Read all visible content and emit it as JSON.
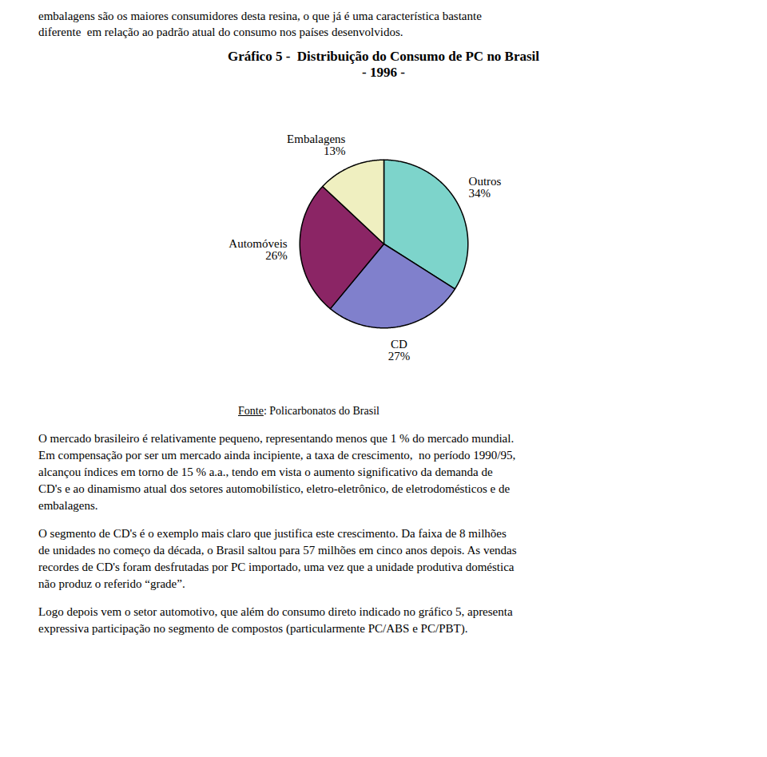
{
  "chart_data": {
    "type": "pie",
    "title": "Gráfico 5 -  Distribuição do Consumo de PC no Brasil",
    "subtitle": "- 1996 -",
    "categories": [
      "Outros",
      "CD",
      "Automóveis",
      "Embalagens"
    ],
    "values": [
      34,
      27,
      26,
      13
    ],
    "value_labels": [
      "34%",
      "27%",
      "26%",
      "13%"
    ],
    "data_labels": true,
    "colors": [
      "#7DD4CB",
      "#8080CC",
      "#8B2565",
      "#EFEFC0"
    ],
    "annotations": [
      "embalagens são os maiores consumidores desta resina, o que já é uma característica bastante",
      "diferente  em relação ao padrão atual do consumo nos países desenvolvidos.",
      "Fonte: Policarbonatos do Brasil",
      "O mercado brasileiro é relativamente pequeno, representando menos que 1 % do mercado mundial.\nEm compensação por ser um mercado ainda incipiente, a taxa de crescimento,  no período 1990/95,\nalcançou índices em torno de 15 % a.a., tendo em vista o aumento significativo da demanda de\nCD's e ao dinamismo atual dos setores automobilístico, eletro-eletrônico, de eletrodomésticos e de\nembalagens.",
      "O segmento de CD's é o exemplo mais claro que justifica este crescimento. Da faixa de 8 milhões\nde unidades no começo da década, o Brasil saltou para 57 milhões em cinco anos depois. As vendas\nrecordes de CD's foram desfrutadas por PC importado, uma vez que a unidade produtiva doméstica\nnão produz o referido “grade”.",
      "Logo depois vem o setor automotivo, que além do consumo direto indicado no gráfico 5, apresenta\nexpressiva participação no segmento de compostos (particularmente PC/ABS e PC/PBT)."
    ]
  }
}
